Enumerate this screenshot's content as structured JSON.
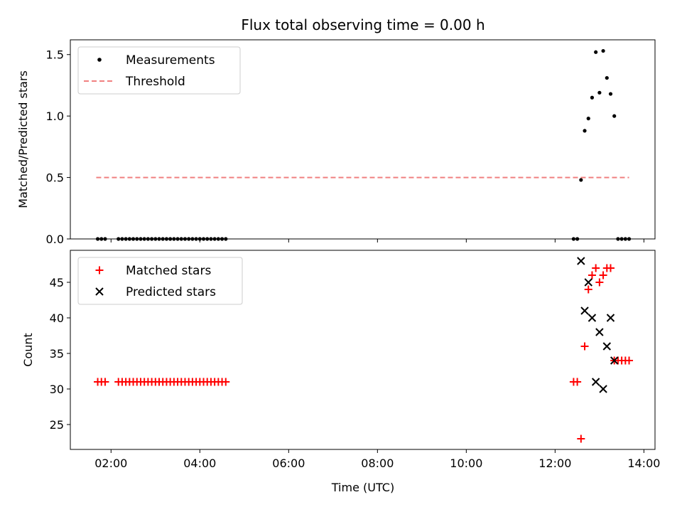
{
  "chart_data": [
    {
      "type": "scatter",
      "title": "Flux total observing time = 0.00 h",
      "xlabel": "",
      "ylabel": "Matched/Predicted stars",
      "xlim": [
        "01:05",
        "14:15"
      ],
      "ylim": [
        0,
        1.62
      ],
      "yticks": [
        0,
        0.5,
        1.0,
        1.5
      ],
      "ytick_labels": [
        "0.0",
        "0.5",
        "1.0",
        "1.5"
      ],
      "grid": false,
      "legend": "top-left",
      "legend_entries": [
        "Measurements",
        "Threshold"
      ],
      "colors": {
        "measurements": "#000000",
        "threshold": "#f08080"
      },
      "series": [
        {
          "name": "Measurements",
          "marker": "dot",
          "x": [
            "01:42",
            "01:47",
            "01:52",
            "02:10",
            "02:15",
            "02:20",
            "02:25",
            "02:30",
            "02:35",
            "02:40",
            "02:45",
            "02:50",
            "02:55",
            "03:00",
            "03:05",
            "03:10",
            "03:15",
            "03:20",
            "03:25",
            "03:30",
            "03:35",
            "03:40",
            "03:45",
            "03:50",
            "03:55",
            "04:00",
            "04:05",
            "04:10",
            "04:15",
            "04:20",
            "04:25",
            "04:30",
            "04:35",
            "12:25",
            "12:30",
            "12:35",
            "12:40",
            "12:45",
            "12:50",
            "12:55",
            "13:00",
            "13:05",
            "13:10",
            "13:15",
            "13:20",
            "13:25",
            "13:30",
            "13:35",
            "13:40"
          ],
          "y": [
            0,
            0,
            0,
            0,
            0,
            0,
            0,
            0,
            0,
            0,
            0,
            0,
            0,
            0,
            0,
            0,
            0,
            0,
            0,
            0,
            0,
            0,
            0,
            0,
            0,
            0,
            0,
            0,
            0,
            0,
            0,
            0,
            0,
            0,
            0,
            0.48,
            0.88,
            0.98,
            1.15,
            1.52,
            1.19,
            1.53,
            1.31,
            1.18,
            1.0,
            0,
            0,
            0,
            0
          ]
        },
        {
          "name": "Threshold",
          "marker": "dashed-line",
          "x": [
            "01:40",
            "13:40"
          ],
          "y": [
            0.5,
            0.5
          ]
        }
      ]
    },
    {
      "type": "scatter",
      "title": "",
      "xlabel": "Time (UTC)",
      "ylabel": "Count",
      "xlim": [
        "01:05",
        "14:15"
      ],
      "ylim": [
        21.5,
        49.5
      ],
      "yticks": [
        25,
        30,
        35,
        40,
        45
      ],
      "ytick_labels": [
        "25",
        "30",
        "35",
        "40",
        "45"
      ],
      "xticks": [
        "02:00",
        "04:00",
        "06:00",
        "08:00",
        "10:00",
        "12:00",
        "14:00"
      ],
      "xtick_labels": [
        "02:00",
        "04:00",
        "06:00",
        "08:00",
        "10:00",
        "12:00",
        "14:00"
      ],
      "grid": false,
      "legend": "top-left",
      "legend_entries": [
        "Matched stars",
        "Predicted stars"
      ],
      "colors": {
        "matched": "#ff0000",
        "predicted": "#000000"
      },
      "series": [
        {
          "name": "Matched stars",
          "marker": "plus",
          "x": [
            "01:42",
            "01:47",
            "01:52",
            "02:10",
            "02:15",
            "02:20",
            "02:25",
            "02:30",
            "02:35",
            "02:40",
            "02:45",
            "02:50",
            "02:55",
            "03:00",
            "03:05",
            "03:10",
            "03:15",
            "03:20",
            "03:25",
            "03:30",
            "03:35",
            "03:40",
            "03:45",
            "03:50",
            "03:55",
            "04:00",
            "04:05",
            "04:10",
            "04:15",
            "04:20",
            "04:25",
            "04:30",
            "04:35",
            "12:25",
            "12:30",
            "12:35",
            "12:40",
            "12:45",
            "12:50",
            "12:55",
            "13:00",
            "13:05",
            "13:10",
            "13:15",
            "13:20",
            "13:25",
            "13:30",
            "13:35",
            "13:40"
          ],
          "y": [
            31,
            31,
            31,
            31,
            31,
            31,
            31,
            31,
            31,
            31,
            31,
            31,
            31,
            31,
            31,
            31,
            31,
            31,
            31,
            31,
            31,
            31,
            31,
            31,
            31,
            31,
            31,
            31,
            31,
            31,
            31,
            31,
            31,
            31,
            31,
            23,
            36,
            44,
            46,
            47,
            45,
            46,
            47,
            47,
            34,
            34,
            34,
            34,
            34
          ]
        },
        {
          "name": "Predicted stars",
          "marker": "x",
          "x": [
            "12:35",
            "12:40",
            "12:45",
            "12:50",
            "12:55",
            "13:00",
            "13:05",
            "13:10",
            "13:15",
            "13:20"
          ],
          "y": [
            48,
            41,
            45,
            40,
            31,
            38,
            30,
            36,
            40,
            34
          ]
        }
      ]
    }
  ]
}
